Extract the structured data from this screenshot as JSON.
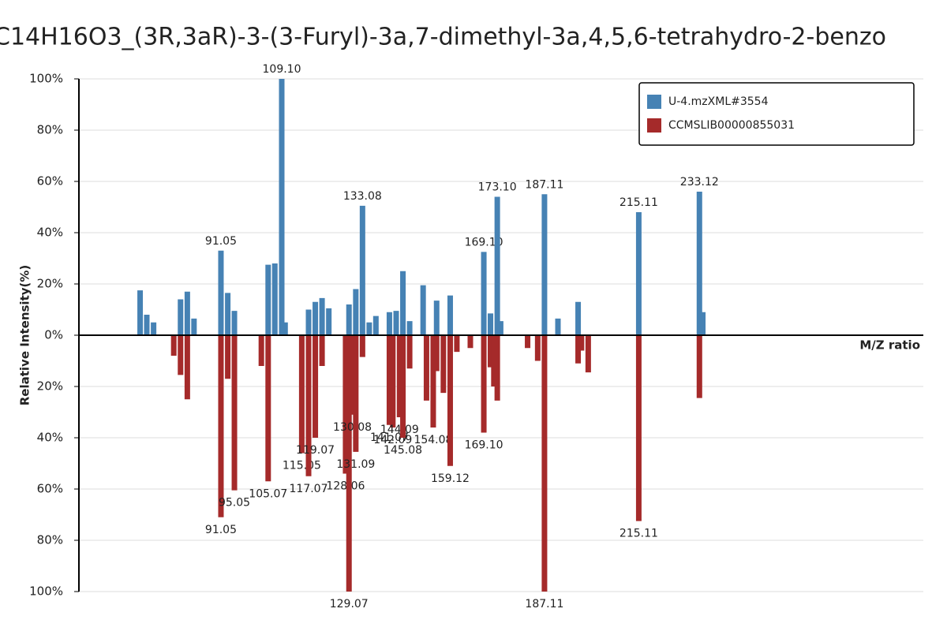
{
  "chart_data": {
    "type": "mirror_bar",
    "title": "C14H16O3_(3R,3aR)-3-(3-Furyl)-3a,7-dimethyl-3a,4,5,6-tetrahydro-2-benzo",
    "x_label": "M/Z ratio",
    "y_label": "Relative Intensity(%)",
    "xlim": [
      48.88,
      299.6
    ],
    "ylim": [
      -100,
      100
    ],
    "yticks": [
      {
        "value": 100,
        "label": "100%"
      },
      {
        "value": 80,
        "label": "80%"
      },
      {
        "value": 60,
        "label": "60%"
      },
      {
        "value": 40,
        "label": "40%"
      },
      {
        "value": 20,
        "label": "20%"
      },
      {
        "value": 0,
        "label": "0%"
      },
      {
        "value": -20,
        "label": "20%"
      },
      {
        "value": -40,
        "label": "40%"
      },
      {
        "value": -60,
        "label": "60%"
      },
      {
        "value": -80,
        "label": "80%"
      },
      {
        "value": -100,
        "label": "100%"
      }
    ],
    "grid": true,
    "legend": "upper right",
    "series": [
      {
        "name": "U-4.mzXML#3554",
        "color": "#4682b4",
        "x": [
          67.05,
          69.03,
          71.05,
          79.05,
          81.07,
          83.05,
          91.05,
          93.07,
          95.05,
          105.07,
          107.05,
          109.1,
          110.1,
          117.07,
          119.07,
          121.07,
          123.08,
          129.07,
          131.09,
          133.08,
          135.08,
          137.06,
          141.07,
          143.08,
          145.08,
          147.08,
          151.08,
          155.09,
          159.12,
          169.1,
          171.08,
          173.1,
          174.1,
          187.11,
          191.11,
          197.1,
          215.11,
          233.12,
          234.12
        ],
        "values": [
          17.5,
          8,
          5,
          14,
          17,
          6.5,
          33,
          16.5,
          9.5,
          27.5,
          28,
          100,
          5,
          10,
          13,
          14.5,
          10.5,
          12,
          18,
          50.5,
          5,
          7.5,
          9,
          9.5,
          25,
          5.5,
          19.5,
          13.5,
          15.5,
          32.5,
          8.5,
          54,
          5.5,
          55,
          6.5,
          13,
          48,
          56,
          9
        ],
        "peak_labels": [
          null,
          null,
          null,
          null,
          null,
          null,
          "91.05",
          null,
          null,
          null,
          null,
          "109.10",
          null,
          null,
          null,
          null,
          null,
          null,
          null,
          "133.08",
          null,
          null,
          null,
          null,
          null,
          null,
          null,
          null,
          null,
          "169.10",
          null,
          "173.10",
          null,
          "187.11",
          null,
          null,
          "215.11",
          "233.12",
          null
        ]
      },
      {
        "name": "CCMSLIB00000855031",
        "color": "#a52a2a",
        "x": [
          77.04,
          79.05,
          81.07,
          91.05,
          93.07,
          95.05,
          103.05,
          105.07,
          115.05,
          117.07,
          119.07,
          121.07,
          128.06,
          129.07,
          130.08,
          131.09,
          133.08,
          141.07,
          142.09,
          144.09,
          145.08,
          147.08,
          152.08,
          154.08,
          155.09,
          157.1,
          159.12,
          161.1,
          165.1,
          169.1,
          171.08,
          172.09,
          173.1,
          182.1,
          185.1,
          187.11,
          197.1,
          198.1,
          200.1,
          215.11,
          233.12
        ],
        "values": [
          -8,
          -15.5,
          -25,
          -71,
          -17,
          -60.5,
          -12,
          -57,
          -46,
          -55,
          -40,
          -12,
          -54,
          -100,
          -31,
          -45.5,
          -8.5,
          -35,
          -36,
          -32,
          -40,
          -13,
          -25.5,
          -36,
          -14,
          -22.5,
          -51,
          -6.5,
          -5,
          -38,
          -12.5,
          -20,
          -25.5,
          -5,
          -10,
          -100,
          -11,
          -6,
          -14.5,
          -72.5,
          -24.5
        ],
        "peak_labels": [
          null,
          null,
          null,
          "91.05",
          null,
          "95.05",
          null,
          "105.07",
          "115.05",
          "117.07",
          "119.07",
          null,
          "128.06",
          "129.07",
          "130.08",
          "131.09",
          null,
          "141.07",
          "142.09",
          "144.09",
          "145.08",
          null,
          null,
          "154.08",
          null,
          null,
          "159.12",
          null,
          null,
          "169.10",
          null,
          null,
          null,
          null,
          null,
          "187.11",
          null,
          null,
          null,
          "215.11",
          null
        ]
      }
    ]
  }
}
